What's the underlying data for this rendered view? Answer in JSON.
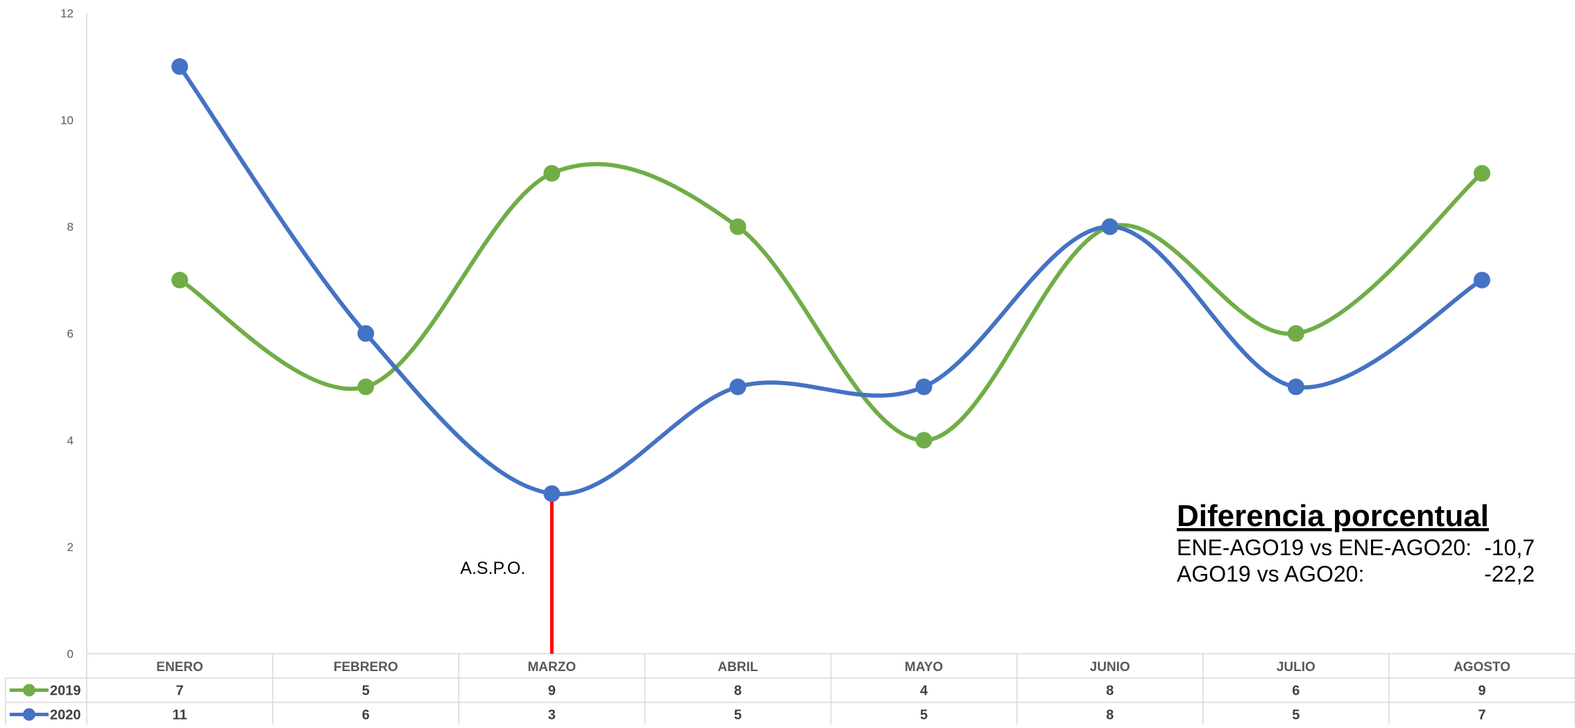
{
  "chart_data": {
    "type": "line",
    "smooth": true,
    "categories": [
      "ENERO",
      "FEBRERO",
      "MARZO",
      "ABRIL",
      "MAYO",
      "JUNIO",
      "JULIO",
      "AGOSTO"
    ],
    "series": [
      {
        "name": "2019",
        "values": [
          7,
          5,
          9,
          8,
          4,
          8,
          6,
          9
        ],
        "color": "#70AD47"
      },
      {
        "name": "2020",
        "values": [
          11,
          6,
          3,
          5,
          5,
          8,
          5,
          7
        ],
        "color": "#4472C4"
      }
    ],
    "ylim": [
      0,
      12
    ],
    "yticks": [
      "0",
      "2",
      "4",
      "6",
      "8",
      "10",
      "12"
    ],
    "grid": false,
    "data_table": true,
    "event_marker": {
      "category": "MARZO",
      "label": "A.S.P.O.",
      "color": "#FF0000"
    }
  },
  "annotation": {
    "title": "Diferencia porcentual",
    "rows": [
      {
        "label": "ENE-AGO19 vs ENE-AGO20:",
        "value": "-10,7"
      },
      {
        "label": "AGO19 vs AGO20:",
        "value": "-22,2"
      }
    ]
  }
}
